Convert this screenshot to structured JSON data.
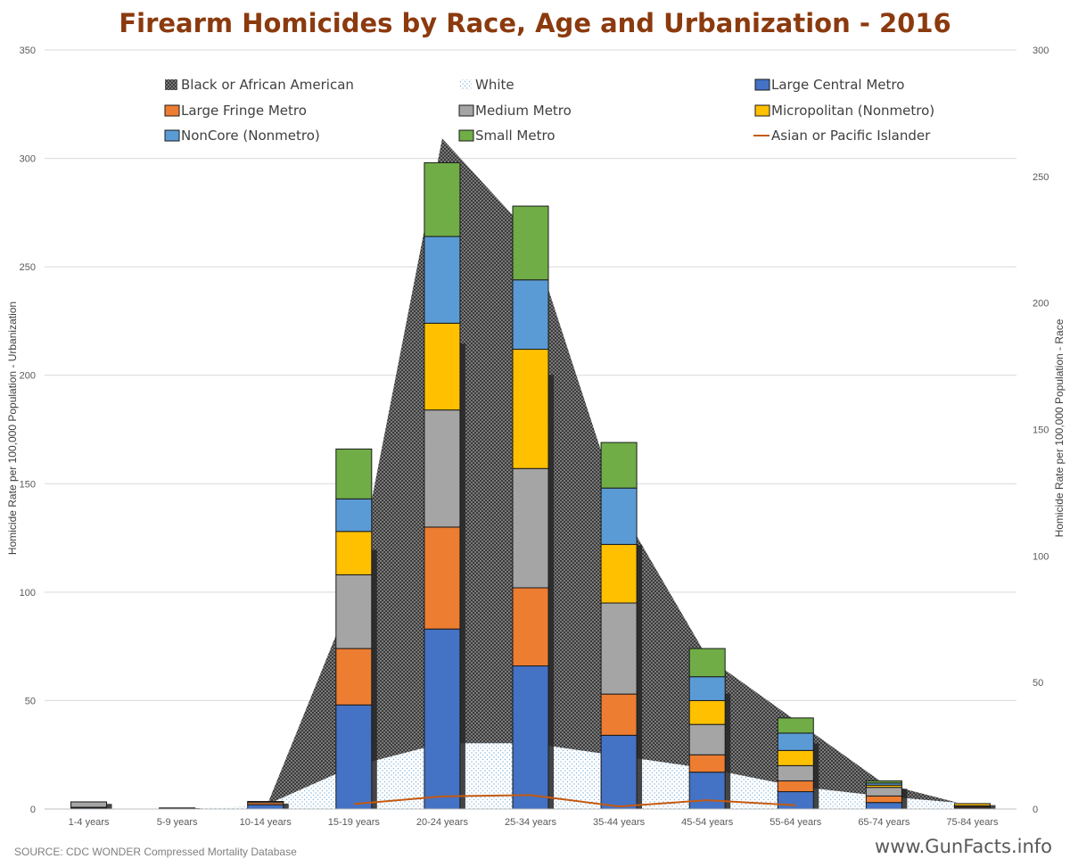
{
  "chart_data": {
    "type": "bar",
    "title": "Firearm Homicides by Race, Age and Urbanization - 2016",
    "xlabel": "",
    "ylabel": "Homicide Rate per 100,000 Population - Urbanization",
    "y2label": "Homicide Rate per 100,000 Population - Race",
    "ylim": [
      0,
      350
    ],
    "y2lim": [
      0,
      300
    ],
    "yticks": [
      0,
      50,
      100,
      150,
      200,
      250,
      300,
      350
    ],
    "y2ticks": [
      0,
      50,
      100,
      150,
      200,
      250,
      300
    ],
    "grid": true,
    "legend_position": "top",
    "categories": [
      "1-4 years",
      "5-9 years",
      "10-14 years",
      "15-19 years",
      "20-24 years",
      "25-34 years",
      "35-44 years",
      "45-54 years",
      "55-64 years",
      "65-74 years",
      "75-84 years"
    ],
    "bar_series": [
      {
        "name": "Large Central Metro",
        "color": "#4472C4",
        "values": [
          0.5,
          0.2,
          2,
          48,
          83,
          66,
          34,
          17,
          8,
          3,
          0.5
        ]
      },
      {
        "name": "Large Fringe Metro",
        "color": "#ED7D31",
        "values": [
          0.3,
          0.1,
          1,
          26,
          47,
          36,
          19,
          8,
          5,
          3,
          0.5
        ]
      },
      {
        "name": "Medium Metro",
        "color": "#A5A5A5",
        "values": [
          2.5,
          0.2,
          0.5,
          34,
          54,
          55,
          42,
          14,
          7,
          4,
          0.5
        ]
      },
      {
        "name": "Micropolitan (Nonmetro)",
        "color": "#FFC000",
        "values": [
          0,
          0,
          0,
          20,
          40,
          55,
          27,
          11,
          7,
          1,
          1
        ]
      },
      {
        "name": "NonCore (Nonmetro)",
        "color": "#5B9BD5",
        "values": [
          0,
          0,
          0,
          15,
          40,
          32,
          26,
          11,
          8,
          1,
          0
        ]
      },
      {
        "name": "Small Metro",
        "color": "#70AD47",
        "values": [
          0,
          0,
          0,
          23,
          34,
          34,
          21,
          13,
          7,
          1,
          0
        ]
      }
    ],
    "area_series": [
      {
        "name": "Black or African American",
        "axis": "secondary",
        "color": "#595959",
        "values": [
          0,
          0,
          0,
          86,
          265,
          227,
          120,
          60,
          35,
          10,
          1
        ]
      },
      {
        "name": "White",
        "axis": "secondary",
        "color": "#9DC3E6",
        "values": [
          0,
          0,
          1.5,
          17,
          26,
          26,
          21,
          16,
          9,
          5,
          2
        ]
      }
    ],
    "line_series": [
      {
        "name": "Asian or Pacific Islander",
        "axis": "secondary",
        "color": "#C55A11",
        "values": [
          null,
          null,
          null,
          2,
          5,
          5.5,
          1,
          3.5,
          1.5,
          null,
          null
        ]
      }
    ],
    "legend": [
      "Black or African American",
      "White",
      "Large Central Metro",
      "Large Fringe Metro",
      "Medium Metro",
      "Micropolitan (Nonmetro)",
      "NonCore (Nonmetro)",
      "Small Metro",
      "Asian or Pacific Islander"
    ]
  },
  "footer": {
    "source": "SOURCE: CDC WONDER Compressed Mortality Database",
    "brand": "www.GunFacts.info"
  }
}
